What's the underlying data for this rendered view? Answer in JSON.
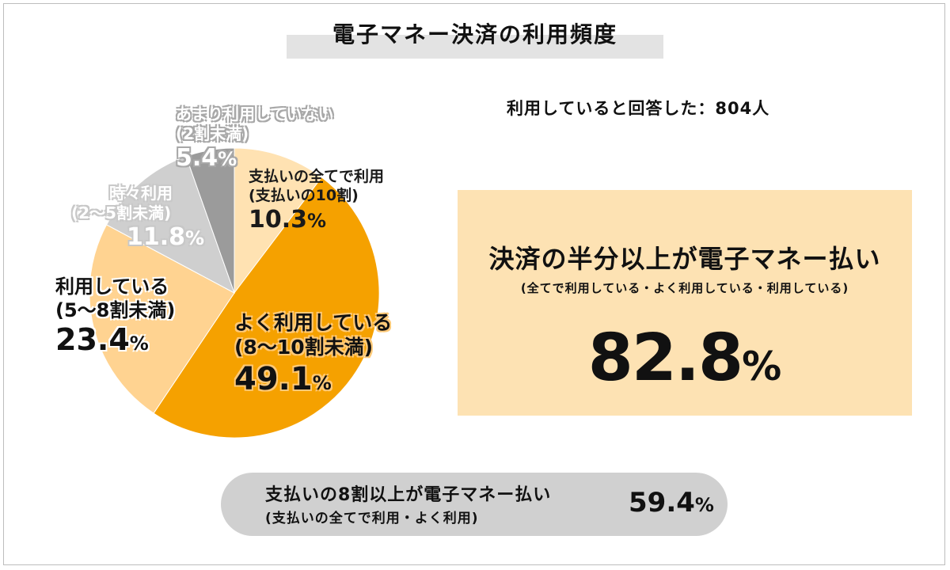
{
  "title": "電子マネー決済の利用頻度",
  "respondents": "利用していると回答した：804人",
  "chart_data": {
    "type": "pie",
    "title": "電子マネー決済の利用頻度",
    "unit": "%",
    "slices": [
      {
        "label": "支払いの全てで利用",
        "sublabel": "(支払いの10割)",
        "value": 10.3,
        "color": "#ffe2b2"
      },
      {
        "label": "よく利用している",
        "sublabel": "(8〜10割未満)",
        "value": 49.1,
        "color": "#f5a100"
      },
      {
        "label": "利用している",
        "sublabel": "(5〜8割未満)",
        "value": 23.4,
        "color": "#ffd391"
      },
      {
        "label": "時々利用",
        "sublabel": "(2〜5割未満)",
        "value": 11.8,
        "color": "#cfcfcf"
      },
      {
        "label": "あまり利用していない",
        "sublabel": "(2割未満)",
        "value": 5.4,
        "color": "#9b9b9b"
      }
    ]
  },
  "labels": {
    "all": {
      "line1": "支払いの全てで利用",
      "line2": "(支払いの10割)",
      "num": "10.3",
      "unit": "%"
    },
    "often": {
      "line1": "よく利用している",
      "line2": "(8〜10割未満)",
      "num": "49.1",
      "unit": "%"
    },
    "use": {
      "line1": "利用している",
      "line2": "(5〜8割未満)",
      "num": "23.4",
      "unit": "%"
    },
    "some": {
      "line1": "時々利用",
      "line2": "(2〜5割未満)",
      "num": "11.8",
      "unit": "%"
    },
    "rare": {
      "line1": "あまり利用していない",
      "line2": "(2割未満)",
      "num": "5.4",
      "unit": "%"
    }
  },
  "summary": {
    "heading": "決済の半分以上が電子マネー払い",
    "subheading": "(全てで利用している・よく利用している・利用している)",
    "value": "82.8",
    "unit": "%"
  },
  "pill": {
    "heading": "支払いの8割以上が電子マネー払い",
    "subheading": "(支払いの全てで利用・よく利用)",
    "value": "59.4",
    "unit": "%"
  },
  "colors": {
    "summary_bg": "#fde2b3",
    "pill_bg": "#d0d0d0",
    "title_bar": "#e3e3e3"
  }
}
